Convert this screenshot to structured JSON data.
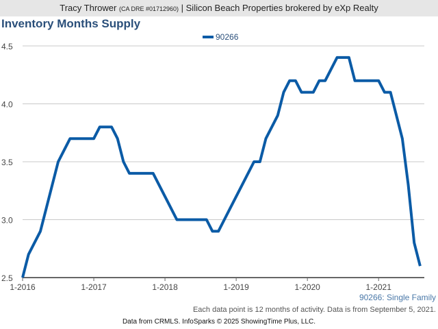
{
  "header": {
    "agent": "Tracy Thrower",
    "license": "(CA DRE #01712960)",
    "brokerage": "| Silicon Beach Properties brokered by eXp Realty"
  },
  "chart_data": {
    "type": "line",
    "title": "Inventory Months Supply",
    "legend": {
      "position": "top-center",
      "entries": [
        "90266"
      ]
    },
    "series_color": "#0b5ba6",
    "xlabel": "",
    "ylabel": "",
    "ylim": [
      2.5,
      4.5
    ],
    "yticks": [
      "2.5",
      "3.0",
      "3.5",
      "4.0",
      "4.5"
    ],
    "xticks": [
      "1-2016",
      "1-2017",
      "1-2018",
      "1-2019",
      "1-2020",
      "1-2021"
    ],
    "x_start": "1-2016",
    "x_step": "month",
    "series": [
      {
        "name": "90266",
        "values": [
          2.5,
          2.7,
          2.8,
          2.9,
          3.1,
          3.3,
          3.5,
          3.6,
          3.7,
          3.7,
          3.7,
          3.7,
          3.7,
          3.8,
          3.8,
          3.8,
          3.7,
          3.5,
          3.4,
          3.4,
          3.4,
          3.4,
          3.4,
          3.3,
          3.2,
          3.1,
          3.0,
          3.0,
          3.0,
          3.0,
          3.0,
          3.0,
          2.9,
          2.9,
          3.0,
          3.1,
          3.2,
          3.3,
          3.4,
          3.5,
          3.5,
          3.7,
          3.8,
          3.9,
          4.1,
          4.2,
          4.2,
          4.1,
          4.1,
          4.1,
          4.2,
          4.2,
          4.3,
          4.4,
          4.4,
          4.4,
          4.2,
          4.2,
          4.2,
          4.2,
          4.2,
          4.1,
          4.1,
          3.9,
          3.7,
          3.3,
          2.8,
          2.6
        ]
      }
    ],
    "grid": true
  },
  "subtitle": "90266: Single Family",
  "note": "Each data point is 12 months of activity. Data is from September 5, 2021.",
  "footer": "Data from CRMLS. InfoSparks © 2025 ShowingTime Plus, LLC."
}
